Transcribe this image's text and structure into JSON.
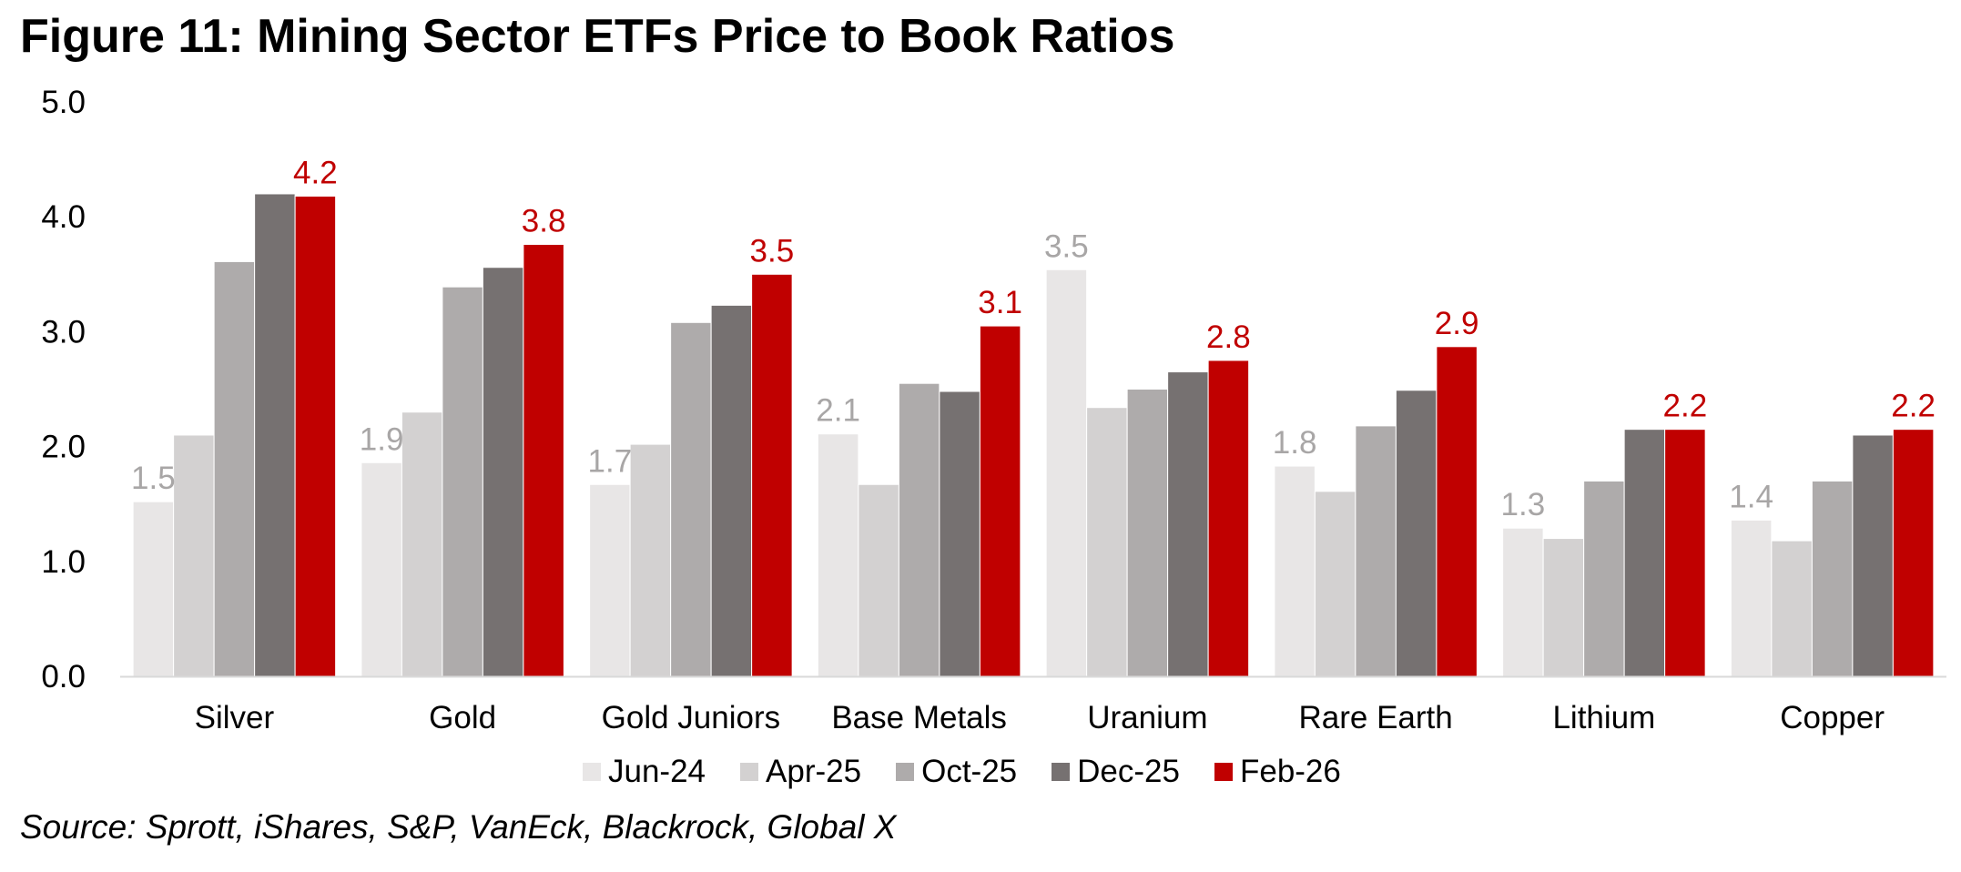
{
  "title": "Figure 11: Mining Sector ETFs Price to Book Ratios",
  "source": "Source: Sprott, iShares, S&P, VanEck, Blackrock, Global X",
  "chart_data": {
    "type": "bar",
    "title": "Figure 11: Mining Sector ETFs Price to Book Ratios",
    "xlabel": "",
    "ylabel": "",
    "ylim": [
      0,
      5
    ],
    "yticks": [
      "0.0",
      "1.0",
      "2.0",
      "3.0",
      "4.0",
      "5.0"
    ],
    "grid": false,
    "legend_position": "bottom",
    "categories": [
      "Silver",
      "Gold",
      "Gold Juniors",
      "Base Metals",
      "Uranium",
      "Rare Earth",
      "Lithium",
      "Copper"
    ],
    "series": [
      {
        "name": "Jun-24",
        "color": "#e8e6e6",
        "values": [
          1.52,
          1.86,
          1.67,
          2.11,
          3.54,
          1.83,
          1.29,
          1.36
        ],
        "labels": [
          "1.5",
          "1.9",
          "1.7",
          "2.1",
          "3.5",
          "1.8",
          "1.3",
          "1.4"
        ],
        "label_color": "#a8a6a6"
      },
      {
        "name": "Apr-25",
        "color": "#d3d1d1",
        "values": [
          2.1,
          2.3,
          2.02,
          1.67,
          2.34,
          1.61,
          1.2,
          1.18
        ]
      },
      {
        "name": "Oct-25",
        "color": "#aeabab",
        "values": [
          3.61,
          3.39,
          3.08,
          2.55,
          2.5,
          2.18,
          1.7,
          1.7
        ]
      },
      {
        "name": "Dec-25",
        "color": "#767171",
        "values": [
          4.2,
          3.56,
          3.23,
          2.48,
          2.65,
          2.49,
          2.15,
          2.1
        ]
      },
      {
        "name": "Feb-26",
        "color": "#c00000",
        "values": [
          4.18,
          3.76,
          3.5,
          3.05,
          2.75,
          2.87,
          2.15,
          2.15
        ],
        "labels": [
          "4.2",
          "3.8",
          "3.5",
          "3.1",
          "2.8",
          "2.9",
          "2.2",
          "2.2"
        ],
        "label_color": "#c00000"
      }
    ]
  }
}
